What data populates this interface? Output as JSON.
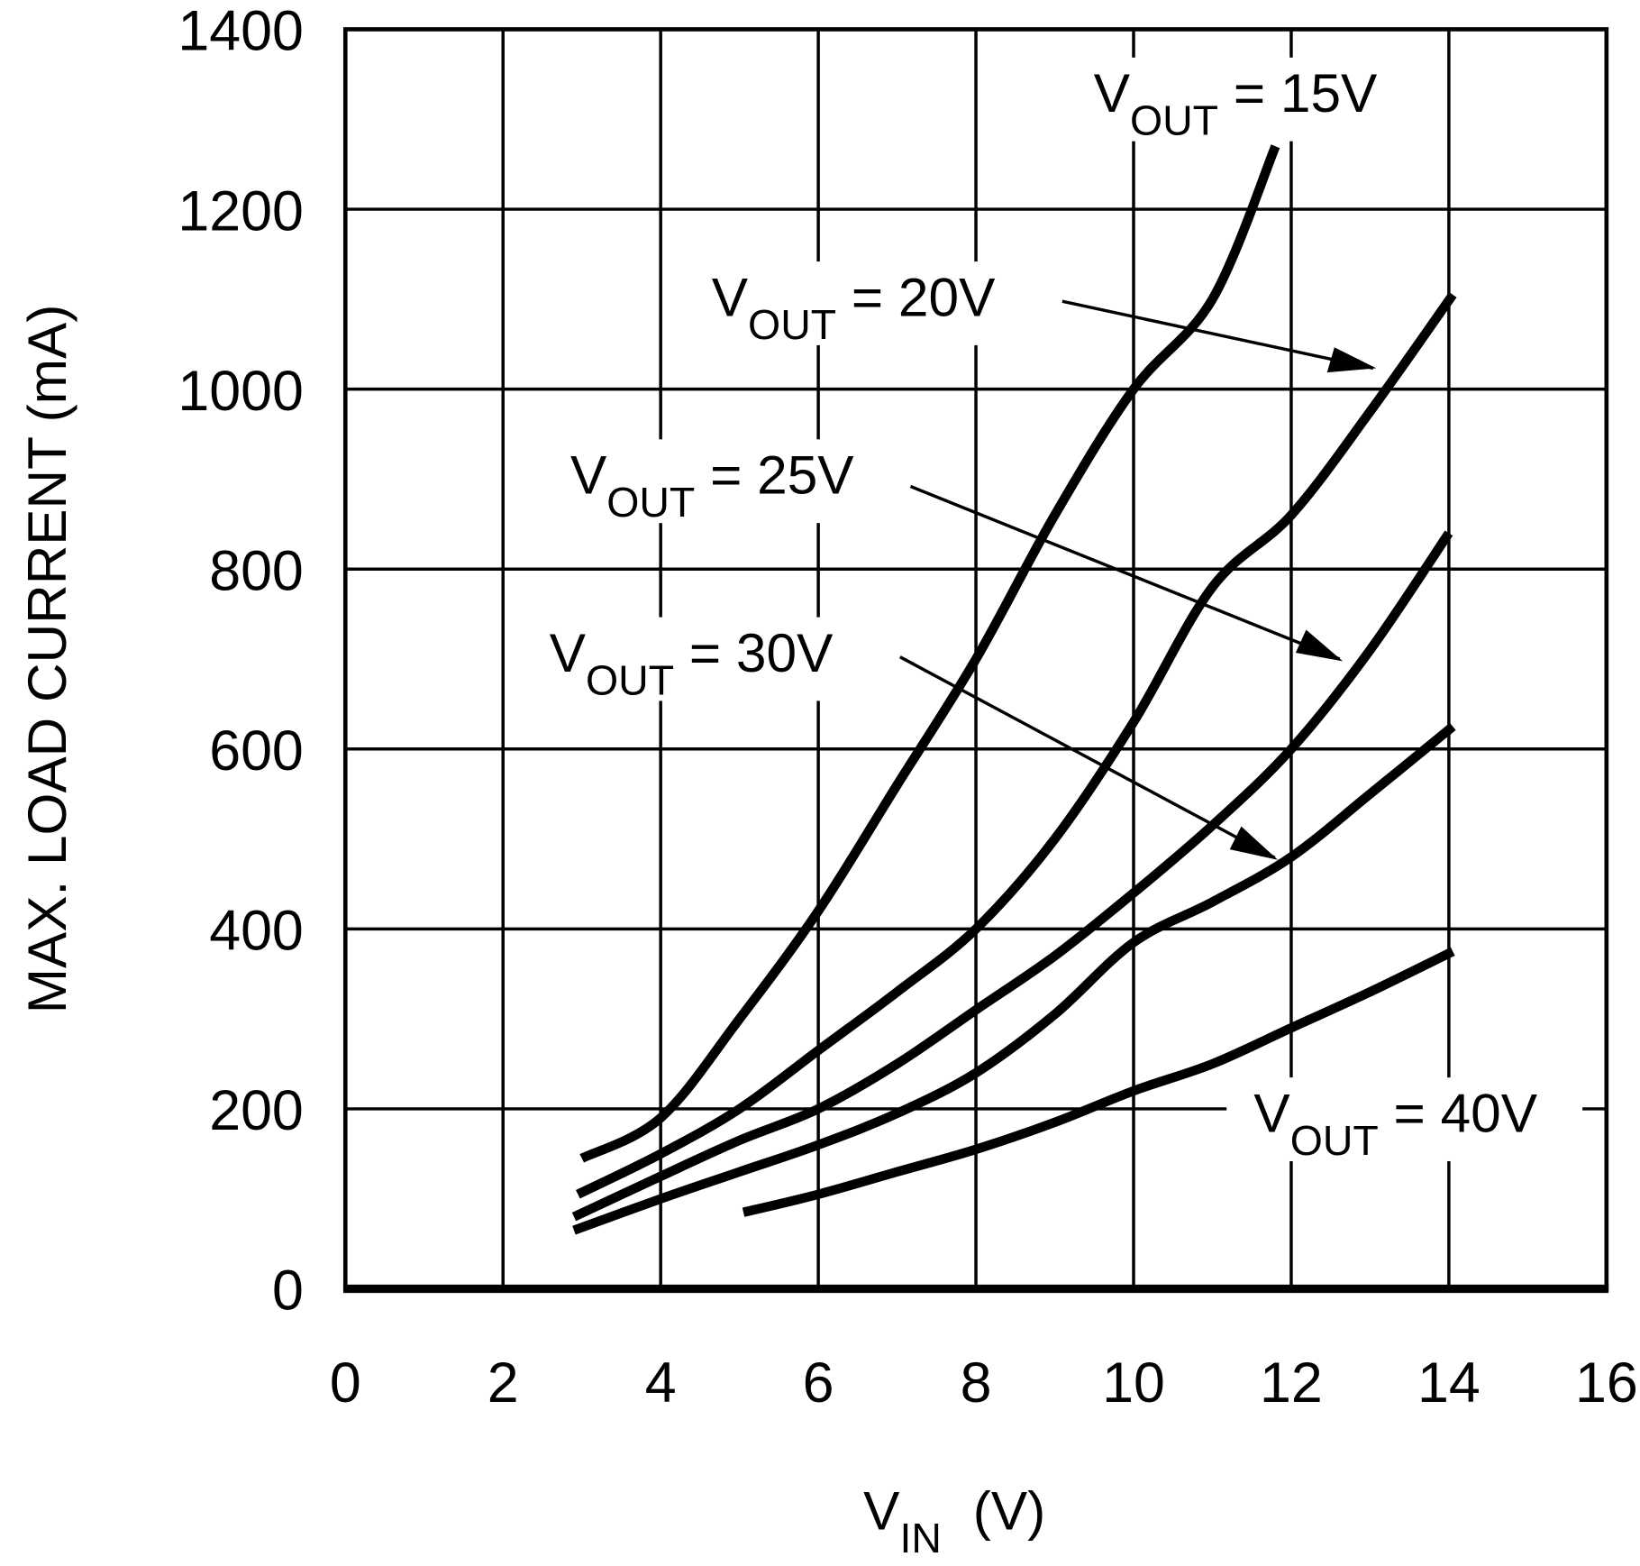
{
  "chart_data": {
    "type": "line",
    "title": "",
    "xlabel": "V",
    "xlabel_sub": "IN",
    "xlabel_unit": "(V)",
    "ylabel": "MAX. LOAD CURRENT (mA)",
    "xlim": [
      0,
      16
    ],
    "ylim": [
      0,
      1400
    ],
    "grid": true,
    "xticks": [
      "0",
      "2",
      "4",
      "6",
      "8",
      "10",
      "12",
      "14",
      "16"
    ],
    "yticks": [
      "0",
      "200",
      "400",
      "600",
      "800",
      "1000",
      "1200",
      "1400"
    ],
    "series": [
      {
        "name": "VOUT = 15V",
        "label_main": "V",
        "label_sub": "OUT",
        "label_rest": " = 15V",
        "x": [
          3,
          4,
          5,
          6,
          7,
          8,
          9,
          10,
          11,
          11.8
        ],
        "y": [
          145,
          190,
          300,
          420,
          560,
          700,
          860,
          1000,
          1100,
          1270
        ]
      },
      {
        "name": "VOUT = 20V",
        "label_main": "V",
        "label_sub": "OUT",
        "label_rest": " = 20V",
        "x": [
          2.95,
          4,
          5,
          6,
          7,
          8,
          9,
          10,
          11,
          12,
          13,
          14.05
        ],
        "y": [
          105,
          150,
          200,
          265,
          330,
          400,
          500,
          630,
          780,
          860,
          975,
          1105
        ]
      },
      {
        "name": "VOUT = 25V",
        "label_main": "V",
        "label_sub": "OUT",
        "label_rest": " = 25V",
        "x": [
          2.9,
          4,
          5,
          6,
          7,
          8,
          9,
          10,
          11,
          12,
          13,
          14
        ],
        "y": [
          80,
          125,
          165,
          200,
          250,
          310,
          370,
          440,
          515,
          600,
          710,
          840
        ]
      },
      {
        "name": "VOUT = 30V",
        "label_main": "V",
        "label_sub": "OUT",
        "label_rest": " = 30V",
        "x": [
          2.9,
          4,
          5,
          6,
          7,
          8,
          9,
          10,
          11,
          12,
          13,
          14.05
        ],
        "y": [
          65,
          100,
          130,
          160,
          195,
          240,
          305,
          385,
          430,
          480,
          550,
          625
        ]
      },
      {
        "name": "VOUT = 40V",
        "label_main": "V",
        "label_sub": "OUT",
        "label_rest": " = 40V",
        "x": [
          5.05,
          6,
          7,
          8,
          9,
          10,
          11,
          12,
          13,
          14.05
        ],
        "y": [
          85,
          105,
          130,
          155,
          185,
          220,
          250,
          290,
          330,
          375
        ]
      }
    ]
  }
}
